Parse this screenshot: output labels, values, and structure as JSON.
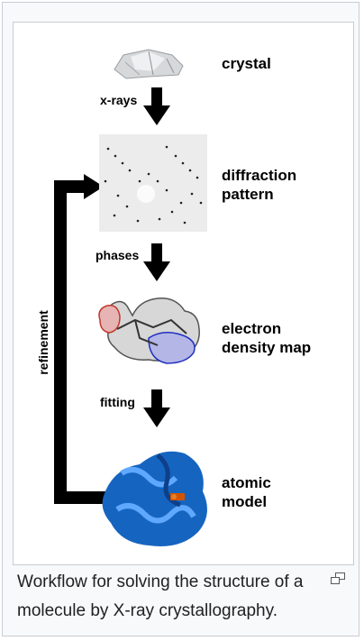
{
  "figure": {
    "steps": [
      {
        "label_lines": [
          "crystal"
        ]
      },
      {
        "label_lines": [
          "diffraction",
          "pattern"
        ]
      },
      {
        "label_lines": [
          "electron",
          "density map"
        ]
      },
      {
        "label_lines": [
          "atomic",
          "model"
        ]
      }
    ],
    "arrows": [
      {
        "label": "x-rays"
      },
      {
        "label": "phases"
      },
      {
        "label": "fitting"
      }
    ],
    "loop_label": "refinement"
  },
  "caption": {
    "text": "Workflow for solving the structure of a molecule by X-ray crystallography.",
    "magnify_icon": "enlarge-icon"
  },
  "colors": {
    "label": "#000000",
    "caption_text": "#202122",
    "frame_border": "#c8ccd1",
    "protein": "#1565c0"
  }
}
